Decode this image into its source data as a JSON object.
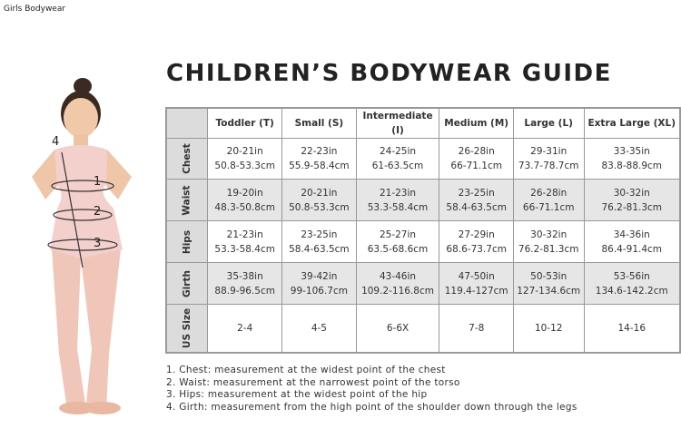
{
  "breadcrumb": "Girls Bodywear",
  "title": "CHILDREN’S BODYWEAR GUIDE",
  "table": {
    "columns": [
      "Toddler (T)",
      "Small (S)",
      "Intermediate (I)",
      "Medium (M)",
      "Large (L)",
      "Extra Large (XL)"
    ],
    "rows": [
      {
        "label": "Chest",
        "cells": [
          [
            "20-21in",
            "50.8-53.3cm"
          ],
          [
            "22-23in",
            "55.9-58.4cm"
          ],
          [
            "24-25in",
            "61-63.5cm"
          ],
          [
            "26-28in",
            "66-71.1cm"
          ],
          [
            "29-31in",
            "73.7-78.7cm"
          ],
          [
            "33-35in",
            "83.8-88.9cm"
          ]
        ]
      },
      {
        "label": "Waist",
        "cells": [
          [
            "19-20in",
            "48.3-50.8cm"
          ],
          [
            "20-21in",
            "50.8-53.3cm"
          ],
          [
            "21-23in",
            "53.3-58.4cm"
          ],
          [
            "23-25in",
            "58.4-63.5cm"
          ],
          [
            "26-28in",
            "66-71.1cm"
          ],
          [
            "30-32in",
            "76.2-81.3cm"
          ]
        ]
      },
      {
        "label": "Hips",
        "cells": [
          [
            "21-23in",
            "53.3-58.4cm"
          ],
          [
            "23-25in",
            "58.4-63.5cm"
          ],
          [
            "25-27in",
            "63.5-68.6cm"
          ],
          [
            "27-29in",
            "68.6-73.7cm"
          ],
          [
            "30-32in",
            "76.2-81.3cm"
          ],
          [
            "34-36in",
            "86.4-91.4cm"
          ]
        ]
      },
      {
        "label": "Girth",
        "cells": [
          [
            "35-38in",
            "88.9-96.5cm"
          ],
          [
            "39-42in",
            "99-106.7cm"
          ],
          [
            "43-46in",
            "109.2-116.8cm"
          ],
          [
            "47-50in",
            "119.4-127cm"
          ],
          [
            "50-53in",
            "127-134.6cm"
          ],
          [
            "53-56in",
            "134.6-142.2cm"
          ]
        ]
      },
      {
        "label": "US Size",
        "cells": [
          [
            "2-4"
          ],
          [
            "4-5"
          ],
          [
            "6-6X"
          ],
          [
            "7-8"
          ],
          [
            "10-12"
          ],
          [
            "14-16"
          ]
        ]
      }
    ]
  },
  "notes": [
    "1. Chest: measurement at the widest point of the chest",
    "2. Waist: measurement at the narrowest point of the torso",
    "3. Hips: measurement at the widest point of the hip",
    "4. Girth: measurement from the high point of the shoulder down through the legs"
  ],
  "figure_markers": [
    "1",
    "2",
    "3",
    "4"
  ]
}
